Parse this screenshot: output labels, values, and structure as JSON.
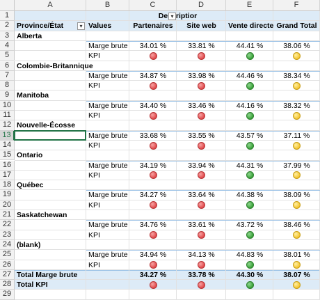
{
  "columns": [
    "A",
    "B",
    "C",
    "D",
    "E",
    "F"
  ],
  "rows": [
    "1",
    "2",
    "3",
    "4",
    "5",
    "6",
    "7",
    "8",
    "9",
    "10",
    "11",
    "12",
    "13",
    "14",
    "15",
    "16",
    "17",
    "18",
    "19",
    "20",
    "21",
    "22",
    "23",
    "24",
    "25",
    "26",
    "27",
    "28",
    "29"
  ],
  "selected_row": "13",
  "pivot": {
    "description_label": "Descriptior",
    "row_label_header": "Province/État",
    "values_header": "Values",
    "column_headers": [
      "Partenaires",
      "Site web",
      "Vente directe",
      "Grand Total"
    ],
    "measure_margin": "Marge brute",
    "measure_kpi": "KPI",
    "groups": [
      {
        "name": "Alberta",
        "margins": [
          "34.01 %",
          "33.81 %",
          "44.41 %",
          "38.06 %"
        ],
        "kpi": [
          "red",
          "red",
          "green",
          "yellow"
        ]
      },
      {
        "name": "Colombie-Britannique",
        "margins": [
          "34.87 %",
          "33.98 %",
          "44.46 %",
          "38.34 %"
        ],
        "kpi": [
          "red",
          "red",
          "green",
          "yellow"
        ]
      },
      {
        "name": "Manitoba",
        "margins": [
          "34.40 %",
          "33.46 %",
          "44.16 %",
          "38.32 %"
        ],
        "kpi": [
          "red",
          "red",
          "green",
          "yellow"
        ]
      },
      {
        "name": "Nouvelle-Écosse",
        "margins": [
          "33.68 %",
          "33.55 %",
          "43.57 %",
          "37.11 %"
        ],
        "kpi": [
          "red",
          "red",
          "green",
          "yellow"
        ]
      },
      {
        "name": "Ontario",
        "margins": [
          "34.19 %",
          "33.94 %",
          "44.31 %",
          "37.99 %"
        ],
        "kpi": [
          "red",
          "red",
          "green",
          "yellow"
        ]
      },
      {
        "name": "Québec",
        "margins": [
          "34.27 %",
          "33.64 %",
          "44.38 %",
          "38.09 %"
        ],
        "kpi": [
          "red",
          "red",
          "green",
          "yellow"
        ]
      },
      {
        "name": "Saskatchewan",
        "margins": [
          "34.76 %",
          "33.61 %",
          "43.72 %",
          "38.46 %"
        ],
        "kpi": [
          "red",
          "red",
          "green",
          "yellow"
        ]
      },
      {
        "name": "(blank)",
        "margins": [
          "34.94 %",
          "34.13 %",
          "44.83 %",
          "38.01 %"
        ],
        "kpi": [
          "red",
          "red",
          "green",
          "yellow"
        ]
      }
    ],
    "total_margin_label": "Total Marge brute",
    "total_margins": [
      "34.27 %",
      "33.78 %",
      "44.30 %",
      "38.07 %"
    ],
    "total_kpi_label": "Total KPI",
    "total_kpi": [
      "red",
      "red",
      "green",
      "yellow"
    ]
  }
}
